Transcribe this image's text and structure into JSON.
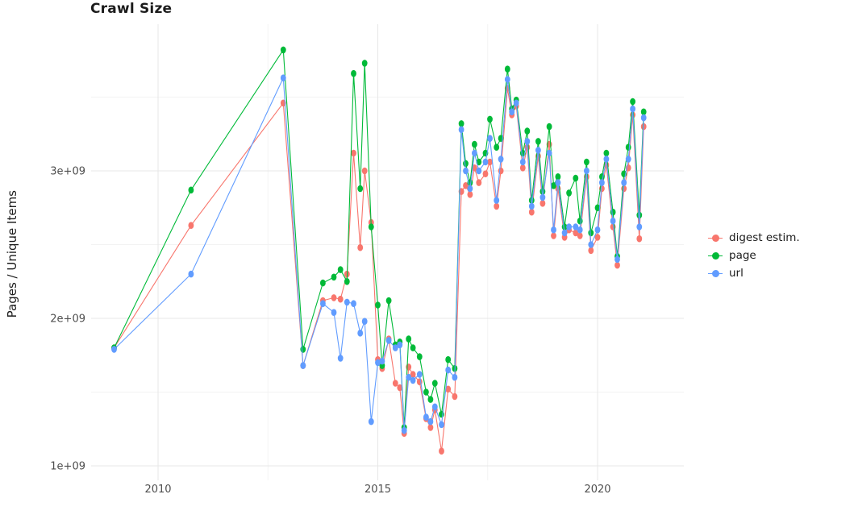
{
  "title": "Crawl Size",
  "y_axis_label": "Pages / Unique Items",
  "legend": {
    "items": [
      {
        "label": "digest estim.",
        "color": "#F8766D"
      },
      {
        "label": "page",
        "color": "#00BA38"
      },
      {
        "label": "url",
        "color": "#619CFF"
      }
    ]
  },
  "chart_data": {
    "type": "line",
    "title": "Crawl Size",
    "xlabel": "",
    "ylabel": "Pages / Unique Items",
    "legend_position": "right",
    "grid": true,
    "background": "#ffffff",
    "x_ticks": [
      2010,
      2015,
      2020
    ],
    "x_minor_ticks": [
      2012.5,
      2017.5
    ],
    "xlim": [
      2008.5,
      2022.0
    ],
    "y_unit": 1000000000,
    "y_ticks": [
      1,
      2,
      3
    ],
    "y_tick_labels": [
      "1e+09",
      "2e+09",
      "3e+09"
    ],
    "y_minor_ticks": [
      1.5,
      2.5,
      3.5
    ],
    "ylim": [
      0.9,
      4.0
    ],
    "x": [
      2009.0,
      2010.75,
      2012.85,
      2013.3,
      2013.75,
      2014.0,
      2014.15,
      2014.3,
      2014.45,
      2014.6,
      2014.7,
      2014.85,
      2015.0,
      2015.1,
      2015.25,
      2015.4,
      2015.5,
      2015.6,
      2015.7,
      2015.8,
      2015.95,
      2016.1,
      2016.2,
      2016.3,
      2016.45,
      2016.6,
      2016.75,
      2016.9,
      2017.0,
      2017.1,
      2017.2,
      2017.3,
      2017.45,
      2017.55,
      2017.7,
      2017.8,
      2017.95,
      2018.05,
      2018.15,
      2018.3,
      2018.4,
      2018.5,
      2018.65,
      2018.75,
      2018.9,
      2019.0,
      2019.1,
      2019.25,
      2019.35,
      2019.5,
      2019.6,
      2019.75,
      2019.85,
      2020.0,
      2020.1,
      2020.2,
      2020.35,
      2020.45,
      2020.6,
      2020.7,
      2020.8,
      2020.95,
      2021.05
    ],
    "series": [
      {
        "name": "digest estim.",
        "color": "#F8766D",
        "values": [
          1.8,
          2.63,
          3.46,
          1.68,
          2.12,
          2.14,
          2.13,
          2.3,
          3.12,
          2.48,
          3.0,
          2.65,
          1.72,
          1.66,
          1.86,
          1.56,
          1.53,
          1.22,
          1.67,
          1.62,
          1.57,
          1.32,
          1.26,
          1.38,
          1.1,
          1.52,
          1.47,
          2.86,
          2.9,
          2.84,
          3.02,
          2.92,
          2.98,
          3.06,
          2.76,
          3.0,
          3.56,
          3.38,
          3.44,
          3.02,
          3.16,
          2.72,
          3.1,
          2.78,
          3.18,
          2.56,
          2.88,
          2.55,
          2.6,
          2.58,
          2.56,
          2.96,
          2.46,
          2.55,
          2.88,
          3.04,
          2.62,
          2.36,
          2.88,
          3.02,
          3.38,
          2.54,
          3.3
        ]
      },
      {
        "name": "page",
        "color": "#00BA38",
        "values": [
          1.8,
          2.87,
          3.82,
          1.79,
          2.24,
          2.28,
          2.33,
          2.25,
          3.66,
          2.88,
          3.73,
          2.62,
          2.09,
          1.68,
          2.12,
          1.82,
          1.84,
          1.26,
          1.86,
          1.8,
          1.74,
          1.5,
          1.45,
          1.56,
          1.35,
          1.72,
          1.66,
          3.32,
          3.05,
          2.92,
          3.18,
          3.06,
          3.12,
          3.35,
          3.16,
          3.22,
          3.69,
          3.42,
          3.48,
          3.12,
          3.27,
          2.8,
          3.2,
          2.86,
          3.3,
          2.9,
          2.96,
          2.62,
          2.85,
          2.95,
          2.66,
          3.06,
          2.58,
          2.75,
          2.96,
          3.12,
          2.72,
          2.42,
          2.98,
          3.16,
          3.47,
          2.7,
          3.4
        ]
      },
      {
        "name": "url",
        "color": "#619CFF",
        "values": [
          1.79,
          2.3,
          3.63,
          1.68,
          2.1,
          2.04,
          1.73,
          2.11,
          2.1,
          1.9,
          1.98,
          1.3,
          1.7,
          1.71,
          1.85,
          1.8,
          1.82,
          1.24,
          1.6,
          1.58,
          1.62,
          1.33,
          1.3,
          1.4,
          1.28,
          1.65,
          1.6,
          3.28,
          3.0,
          2.88,
          3.12,
          3.0,
          3.06,
          3.22,
          2.8,
          3.08,
          3.62,
          3.4,
          3.46,
          3.06,
          3.2,
          2.76,
          3.14,
          2.82,
          3.12,
          2.6,
          2.92,
          2.58,
          2.62,
          2.62,
          2.6,
          3.0,
          2.5,
          2.6,
          2.92,
          3.08,
          2.66,
          2.4,
          2.92,
          3.08,
          3.42,
          2.62,
          3.36
        ]
      }
    ]
  }
}
